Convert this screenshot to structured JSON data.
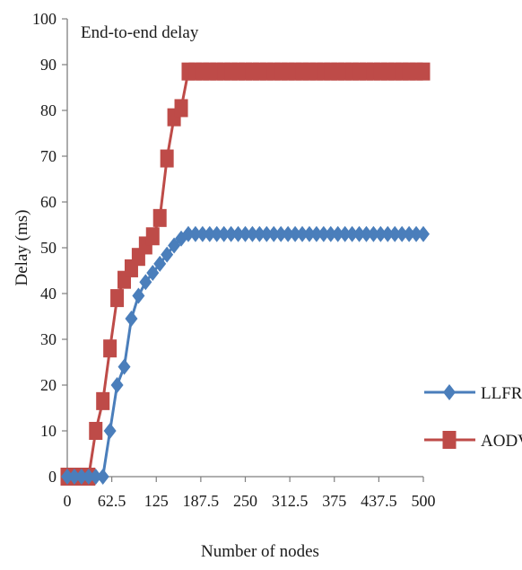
{
  "chart_data": {
    "type": "line",
    "title": "End-to-end delay",
    "xlabel": "Number of nodes",
    "ylabel": "Delay (ms)",
    "ylim": [
      0,
      100
    ],
    "yticks": [
      0,
      10,
      20,
      30,
      40,
      50,
      60,
      70,
      80,
      90,
      100
    ],
    "xlim": [
      0,
      500
    ],
    "xticks": [
      0,
      62.5,
      125,
      187.5,
      250,
      312.5,
      375,
      437.5,
      500
    ],
    "xtick_labels": [
      "0",
      "62.5",
      "125",
      "187.5",
      "250",
      "312.5",
      "375",
      "437.5",
      "500"
    ],
    "grid": false,
    "legend_position": "right",
    "series": [
      {
        "name": "LLFR",
        "color": "#4a7ebb",
        "marker": "diamond",
        "x": [
          0,
          10,
          20,
          30,
          40,
          50,
          60,
          70,
          80,
          90,
          100,
          110,
          120,
          130,
          140,
          150,
          160,
          170,
          180,
          190,
          200,
          210,
          220,
          230,
          240,
          250,
          260,
          270,
          280,
          290,
          300,
          310,
          320,
          330,
          340,
          350,
          360,
          370,
          380,
          390,
          400,
          410,
          420,
          430,
          440,
          450,
          460,
          470,
          480,
          490,
          500
        ],
        "values": [
          0,
          0,
          0,
          0,
          0,
          0,
          10,
          20,
          24,
          34.5,
          39.5,
          42.5,
          44.5,
          46.5,
          48.5,
          50.5,
          52,
          53,
          53,
          53,
          53,
          53,
          53,
          53,
          53,
          53,
          53,
          53,
          53,
          53,
          53,
          53,
          53,
          53,
          53,
          53,
          53,
          53,
          53,
          53,
          53,
          53,
          53,
          53,
          53,
          53,
          53,
          53,
          53,
          53,
          53
        ]
      },
      {
        "name": "AODV",
        "color": "#be4b48",
        "marker": "square",
        "x": [
          0,
          10,
          20,
          30,
          40,
          50,
          60,
          70,
          80,
          90,
          100,
          110,
          120,
          130,
          140,
          150,
          160,
          170,
          180,
          190,
          200,
          210,
          220,
          230,
          240,
          250,
          260,
          270,
          280,
          290,
          300,
          310,
          320,
          330,
          340,
          350,
          360,
          370,
          380,
          390,
          400,
          410,
          420,
          430,
          440,
          450,
          460,
          470,
          480,
          490,
          500
        ],
        "values": [
          0,
          0,
          0,
          0,
          10,
          16.5,
          28,
          39,
          43,
          45.5,
          48,
          50.5,
          52.5,
          56.5,
          69.5,
          78.5,
          80.5,
          88.5,
          88.5,
          88.5,
          88.5,
          88.5,
          88.5,
          88.5,
          88.5,
          88.5,
          88.5,
          88.5,
          88.5,
          88.5,
          88.5,
          88.5,
          88.5,
          88.5,
          88.5,
          88.5,
          88.5,
          88.5,
          88.5,
          88.5,
          88.5,
          88.5,
          88.5,
          88.5,
          88.5,
          88.5,
          88.5,
          88.5,
          88.5,
          88.5,
          88.5
        ]
      }
    ]
  }
}
